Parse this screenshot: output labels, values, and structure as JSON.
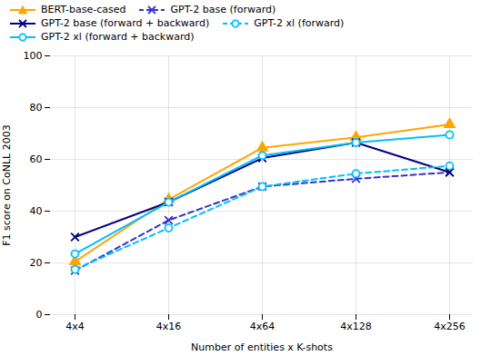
{
  "chart_data": {
    "type": "line",
    "categories": [
      "4x4",
      "4x16",
      "4x64",
      "4x128",
      "4x256"
    ],
    "series": [
      {
        "name": "BERT-base-cased",
        "color": "#FFA500",
        "marker": "triangle",
        "line_style": "solid",
        "values": [
          20.5,
          44.5,
          64.5,
          68.5,
          73.5
        ]
      },
      {
        "name": "GPT-2 base (forward)",
        "color": "#3333CC",
        "marker": "x",
        "line_style": "dashed",
        "values": [
          17.0,
          36.5,
          49.5,
          52.5,
          55.0
        ]
      },
      {
        "name": "GPT-2 base (forward + backward)",
        "color": "#000080",
        "marker": "x",
        "line_style": "solid",
        "values": [
          30.0,
          43.5,
          60.5,
          66.5,
          55.0
        ]
      },
      {
        "name": "GPT-2 xl (forward)",
        "color": "#00BFFF",
        "marker": "circle",
        "line_style": "dashed",
        "values": [
          17.5,
          33.5,
          49.5,
          54.5,
          57.5
        ]
      },
      {
        "name": "GPT-2 xl (forward + backward)",
        "color": "#00BFFF",
        "marker": "circle",
        "line_style": "solid",
        "values": [
          23.5,
          43.5,
          61.5,
          66.5,
          69.5
        ]
      }
    ],
    "xlabel": "Number of entities x K-shots",
    "ylabel": "F1 score on CoNLL 2003",
    "ylim": [
      0,
      100
    ],
    "yticks": [
      0,
      20,
      40,
      60,
      80,
      100
    ],
    "grid": true,
    "legend": "upper left"
  }
}
